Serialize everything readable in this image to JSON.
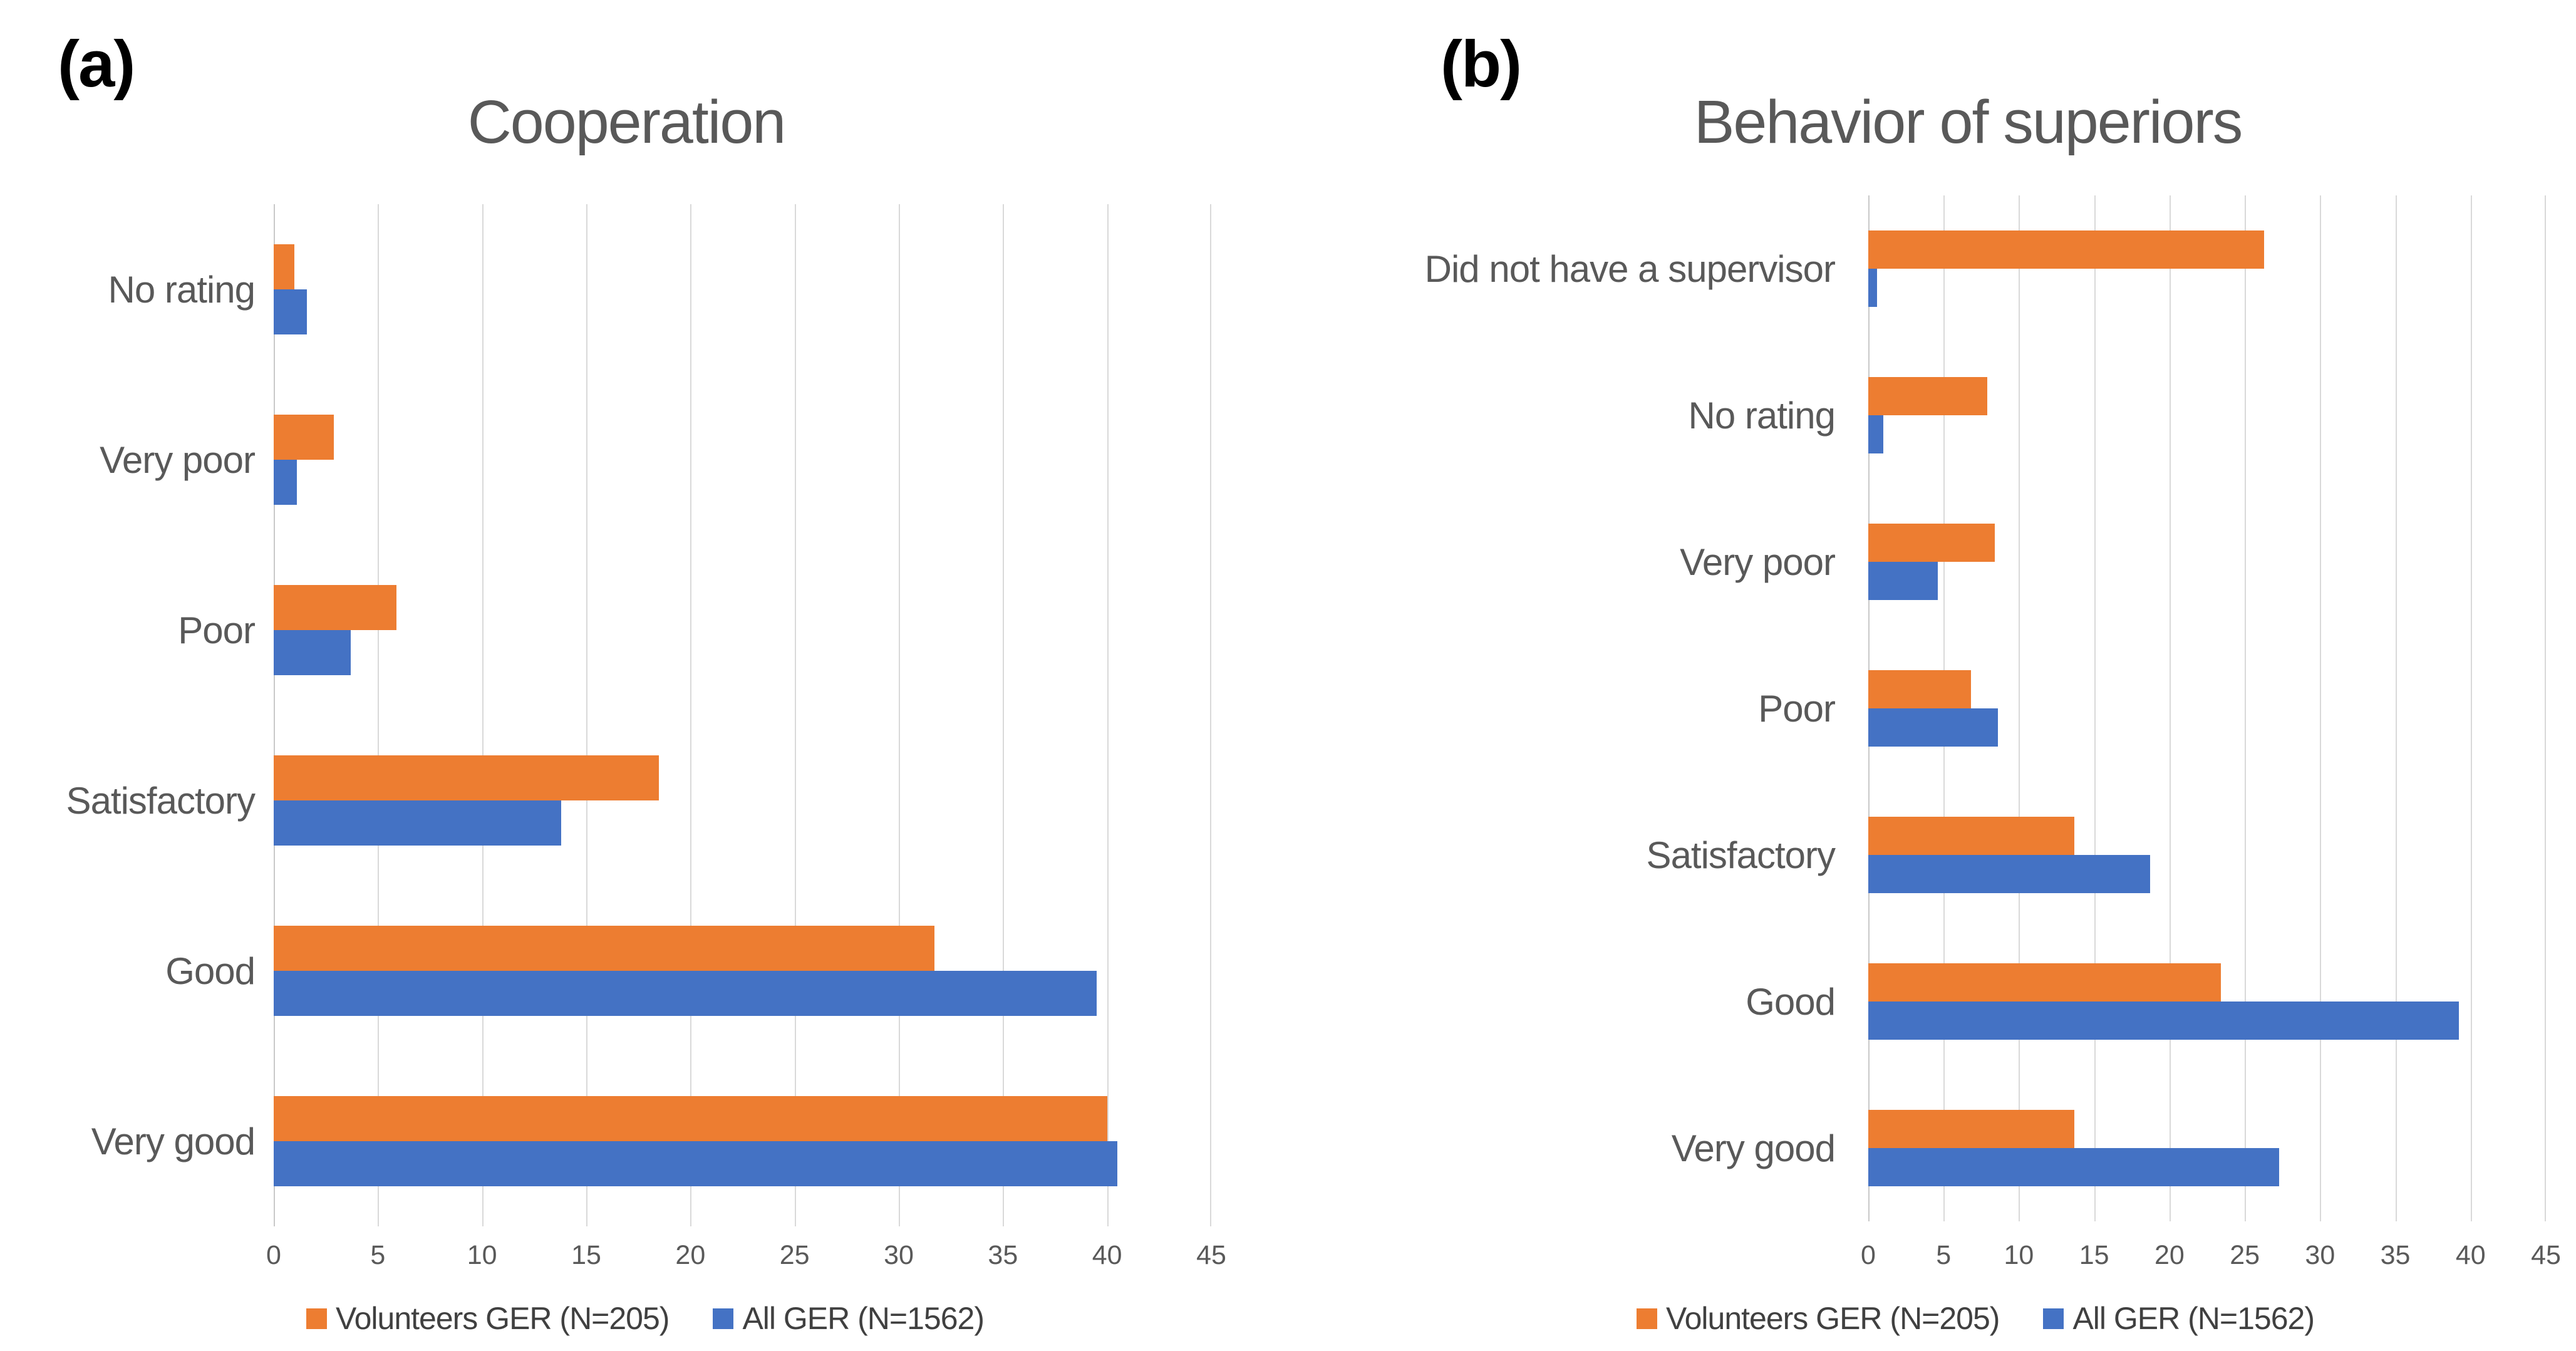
{
  "chart_data": [
    {
      "type": "bar",
      "orientation": "horizontal",
      "panel_label": "(a)",
      "title": "Cooperation",
      "categories": [
        "No rating",
        "Very poor",
        "Poor",
        "Satisfactory",
        "Good",
        "Very good"
      ],
      "series": [
        {
          "name": "Volunteers GER (N=205)",
          "color": "#ED7D31",
          "values": [
            1.0,
            2.9,
            5.9,
            18.5,
            31.7,
            40.0
          ]
        },
        {
          "name": "All GER (N=1562)",
          "color": "#4472C4",
          "values": [
            1.6,
            1.1,
            3.7,
            13.8,
            39.5,
            40.5
          ]
        }
      ],
      "xlim": [
        0,
        45
      ],
      "xticks": [
        0,
        5,
        10,
        15,
        20,
        25,
        30,
        35,
        40,
        45
      ],
      "grid": "vertical-only",
      "legend_position": "bottom"
    },
    {
      "type": "bar",
      "orientation": "horizontal",
      "panel_label": "(b)",
      "title": "Behavior of superiors",
      "categories": [
        "Did not have a supervisor",
        "No rating",
        "Very poor",
        "Poor",
        "Satisfactory",
        "Good",
        "Very good"
      ],
      "series": [
        {
          "name": "Volunteers GER (N=205)",
          "color": "#ED7D31",
          "values": [
            26.3,
            7.9,
            8.4,
            6.8,
            13.7,
            23.4,
            13.7
          ]
        },
        {
          "name": "All GER (N=1562)",
          "color": "#4472C4",
          "values": [
            0.6,
            1.0,
            4.6,
            8.6,
            18.7,
            39.2,
            27.3
          ]
        }
      ],
      "xlim": [
        0,
        45
      ],
      "xticks": [
        0,
        5,
        10,
        15,
        20,
        25,
        30,
        35,
        40,
        45
      ],
      "grid": "vertical-only",
      "legend_position": "bottom"
    }
  ],
  "colors": {
    "volunteers_series": "#ED7D31",
    "all_series": "#4472C4",
    "text": "#595959",
    "gridline": "#D9D9D9",
    "axis_line": "#C9C9C9",
    "figure_label": "#000000",
    "background": "#FFFFFF"
  }
}
